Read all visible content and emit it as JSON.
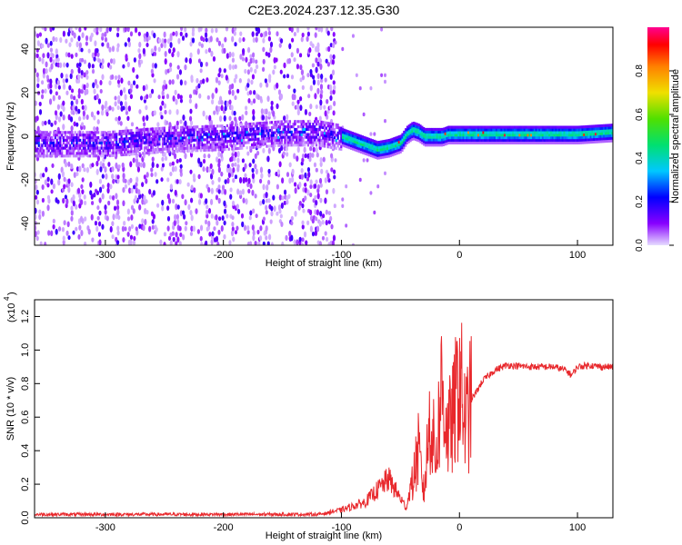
{
  "figure_title": "C2E3.2024.237.12.35.G30",
  "chart_data": [
    {
      "type": "heatmap",
      "title": "",
      "xlabel": "Height of straight line (km)",
      "ylabel": "Frequency (Hz)",
      "xlim": [
        -360,
        130
      ],
      "ylim": [
        -50,
        50
      ],
      "xticks": [
        -300,
        -200,
        -100,
        0,
        100
      ],
      "yticks": [
        -40,
        -20,
        0,
        20,
        40
      ],
      "colorbar": {
        "label": "Normalized spectral amplitude",
        "range": [
          0.0,
          1.0
        ],
        "ticks": [
          "0.0",
          "0.2",
          "0.4",
          "0.6",
          "0.8"
        ],
        "colors": [
          "#e6dcff",
          "#8800ff",
          "#0000ff",
          "#00c8ff",
          "#00e070",
          "#50e000",
          "#f0e000",
          "#ff8000",
          "#ff0000",
          "#ff0090"
        ]
      },
      "ridge": {
        "description_values": "center frequency (Hz) vs height (km)",
        "x": [
          -360,
          -300,
          -250,
          -200,
          -150,
          -120,
          -100,
          -80,
          -70,
          -60,
          -50,
          -45,
          -40,
          -35,
          -30,
          -25,
          -20,
          -15,
          -10,
          0,
          50,
          100,
          130
        ],
        "y": [
          -3,
          -3,
          -1,
          0,
          2,
          2,
          0,
          -4,
          -6,
          -5,
          -3,
          1,
          3,
          2,
          0,
          0,
          0,
          0,
          1,
          1,
          1,
          1,
          2
        ]
      },
      "noise_floor_end_km": -105,
      "strong_signal_start_km": -100
    },
    {
      "type": "line",
      "title": "",
      "xlabel": "Height of straight line (km)",
      "ylabel": "SNR (10 * v/v)",
      "scale_label": "(x10",
      "scale_exponent": "4",
      "xlim": [
        -360,
        130
      ],
      "ylim": [
        0.0,
        1.3
      ],
      "xticks": [
        -300,
        -200,
        -100,
        0,
        100
      ],
      "yticks": [
        "0.0",
        "0.2",
        "0.4",
        "0.6",
        "0.8",
        "1.0",
        "1.2"
      ],
      "color": "#e8282c",
      "series": [
        {
          "x": [
            -360,
            -300,
            -250,
            -200,
            -150,
            -120,
            -100,
            -80,
            -60,
            -50,
            -45,
            -40,
            -35,
            -30,
            -25,
            -20,
            -15,
            -10,
            -5,
            0,
            5,
            10,
            20,
            30,
            40,
            60,
            80,
            90,
            95,
            100,
            110,
            120,
            130
          ],
          "values": [
            0.02,
            0.02,
            0.02,
            0.02,
            0.02,
            0.02,
            0.04,
            0.08,
            0.2,
            0.1,
            0.05,
            0.2,
            0.4,
            0.15,
            0.6,
            0.35,
            0.8,
            0.5,
            0.6,
            0.85,
            0.55,
            0.7,
            0.82,
            0.88,
            0.91,
            0.9,
            0.9,
            0.88,
            0.85,
            0.9,
            0.91,
            0.9,
            0.9
          ]
        }
      ]
    }
  ]
}
